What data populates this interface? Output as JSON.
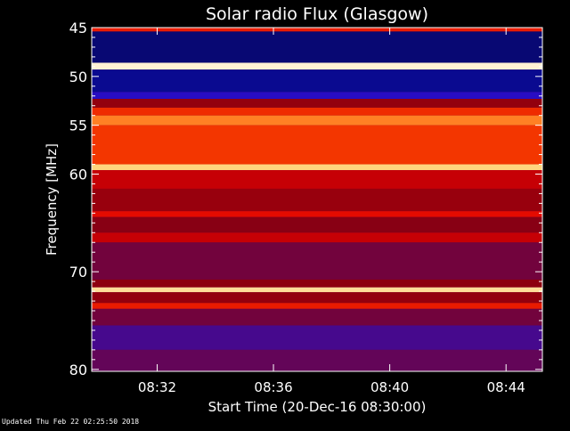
{
  "chart_data": {
    "type": "heatmap",
    "title": "Solar radio Flux (Glasgow)",
    "xlabel": "Start Time (20-Dec-16 08:30:00)",
    "ylabel": "Frequency [MHz]",
    "xlim": [
      "08:29:45",
      "08:45:15"
    ],
    "ylim": [
      80.2,
      45
    ],
    "x_ticks": [
      {
        "time": "08:32",
        "label": "08:32"
      },
      {
        "time": "08:36",
        "label": "08:36"
      },
      {
        "time": "08:40",
        "label": "08:40"
      },
      {
        "time": "08:44",
        "label": "08:44"
      }
    ],
    "y_ticks": [
      {
        "value": 45,
        "label": "45"
      },
      {
        "value": 50,
        "label": "50"
      },
      {
        "value": 55,
        "label": "55"
      },
      {
        "value": 60,
        "label": "60"
      },
      {
        "value": 70,
        "label": "70"
      },
      {
        "value": 80,
        "label": "80"
      }
    ],
    "colormap": [
      "#000000",
      "#1010f0",
      "#8a0010",
      "#e00000",
      "#ff5a00",
      "#ffd070",
      "#ffffff"
    ],
    "bands": [
      {
        "f_start": 45.0,
        "f_end": 45.4,
        "level": 0.55
      },
      {
        "f_start": 45.4,
        "f_end": 48.6,
        "level": 0.08
      },
      {
        "f_start": 48.6,
        "f_end": 49.3,
        "level": 0.95
      },
      {
        "f_start": 49.3,
        "f_end": 51.6,
        "level": 0.1
      },
      {
        "f_start": 51.6,
        "f_end": 52.3,
        "level": 0.2
      },
      {
        "f_start": 52.3,
        "f_end": 53.2,
        "level": 0.35
      },
      {
        "f_start": 53.2,
        "f_end": 54.0,
        "level": 0.58
      },
      {
        "f_start": 54.0,
        "f_end": 55.0,
        "level": 0.72
      },
      {
        "f_start": 55.0,
        "f_end": 59.0,
        "level": 0.6
      },
      {
        "f_start": 59.0,
        "f_end": 59.6,
        "level": 0.85
      },
      {
        "f_start": 59.6,
        "f_end": 61.5,
        "level": 0.45
      },
      {
        "f_start": 61.5,
        "f_end": 63.8,
        "level": 0.36
      },
      {
        "f_start": 63.8,
        "f_end": 64.4,
        "level": 0.52
      },
      {
        "f_start": 64.4,
        "f_end": 66.0,
        "level": 0.33
      },
      {
        "f_start": 66.0,
        "f_end": 67.0,
        "level": 0.45
      },
      {
        "f_start": 67.0,
        "f_end": 70.8,
        "level": 0.3
      },
      {
        "f_start": 70.8,
        "f_end": 71.6,
        "level": 0.34
      },
      {
        "f_start": 71.6,
        "f_end": 72.1,
        "level": 0.88
      },
      {
        "f_start": 72.1,
        "f_end": 73.2,
        "level": 0.35
      },
      {
        "f_start": 73.2,
        "f_end": 73.8,
        "level": 0.55
      },
      {
        "f_start": 73.8,
        "f_end": 75.5,
        "level": 0.3
      },
      {
        "f_start": 75.5,
        "f_end": 78.0,
        "level": 0.24
      },
      {
        "f_start": 78.0,
        "f_end": 80.2,
        "level": 0.28
      }
    ]
  },
  "footer": {
    "updated": "Updated Thu Feb 22 02:25:50 2018"
  }
}
